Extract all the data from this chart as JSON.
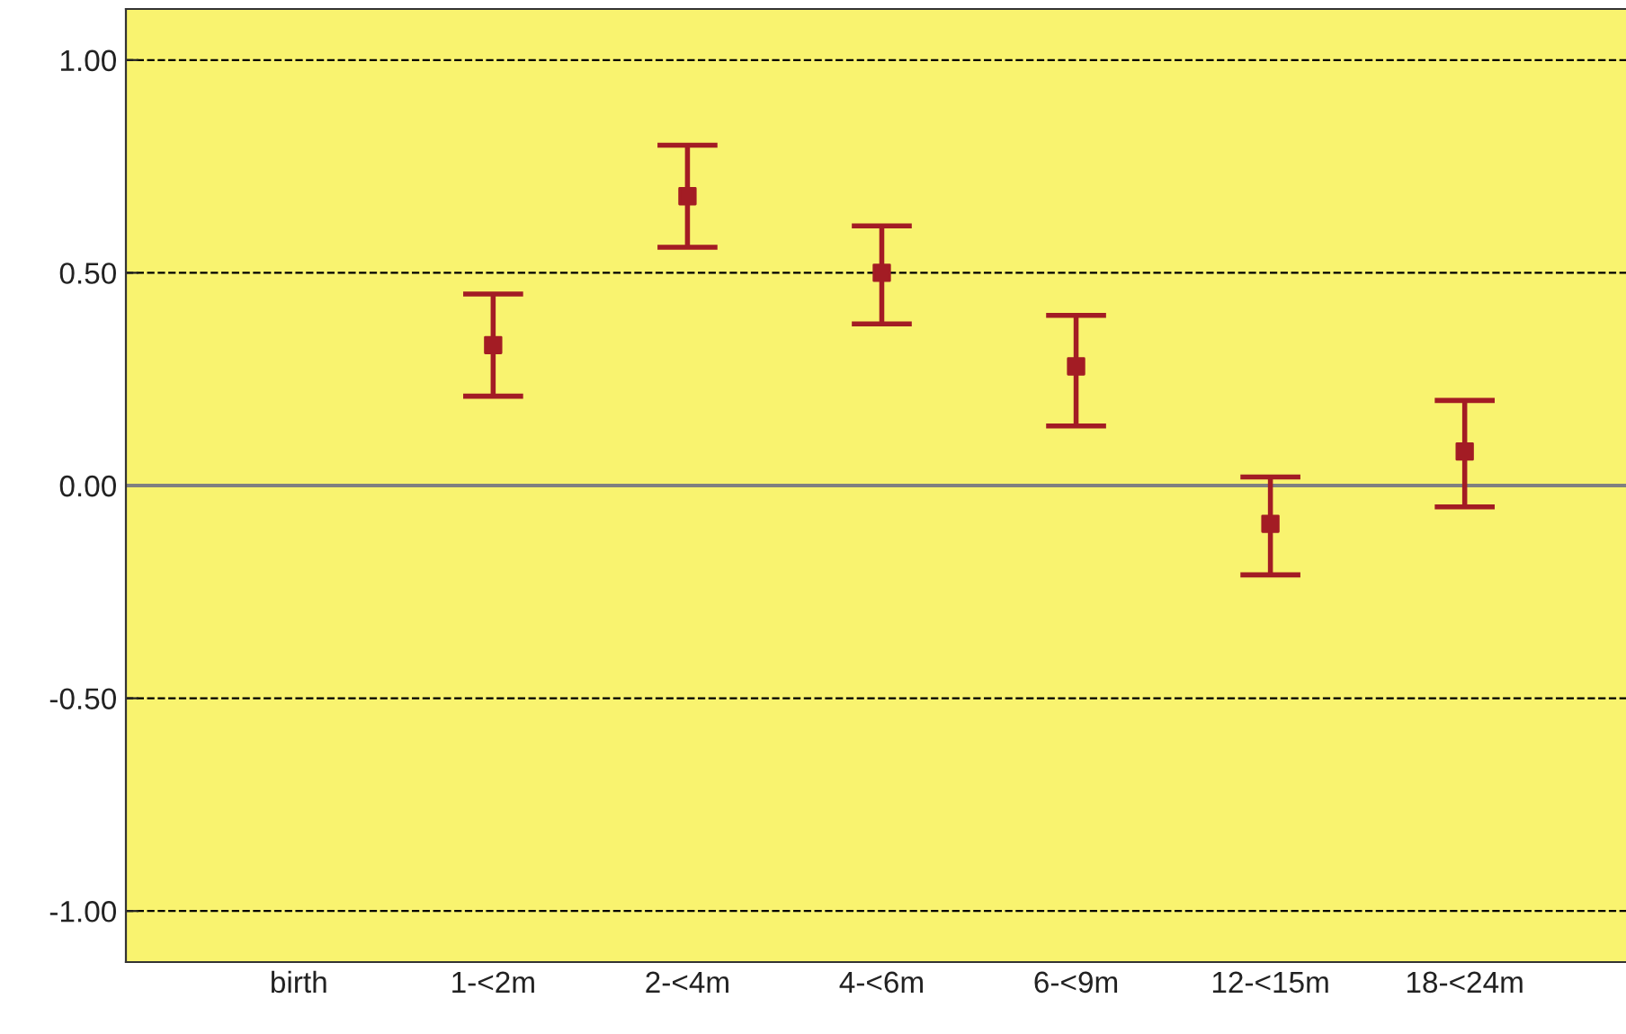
{
  "chart_data": {
    "type": "scatter",
    "categories": [
      "birth",
      "1-<2m",
      "2-<4m",
      "4-<6m",
      "6-<9m",
      "12-<15m",
      "18-<24m"
    ],
    "series": [
      {
        "color": "#a31c24",
        "values": [
          null,
          0.33,
          0.68,
          0.5,
          0.28,
          -0.09,
          0.08
        ],
        "errors": [
          null,
          [
            0.21,
            0.45
          ],
          [
            0.56,
            0.8
          ],
          [
            0.38,
            0.61
          ],
          [
            0.14,
            0.4
          ],
          [
            -0.21,
            0.02
          ],
          [
            -0.05,
            0.2
          ]
        ]
      }
    ],
    "ylim": [
      -1.12,
      1.12
    ],
    "yticks": [
      {
        "value": -1,
        "label": "-1.00"
      },
      {
        "value": -0.5,
        "label": "-0.50"
      },
      {
        "value": 0,
        "label": "0.00"
      },
      {
        "value": 0.5,
        "label": "0.50"
      },
      {
        "value": 1,
        "label": "1.00"
      }
    ],
    "grid": "y",
    "line_style": "dashed",
    "marker": "square",
    "legend": false,
    "ref_lines": [
      {
        "axis": "y",
        "value": 0,
        "color": "#808080",
        "line_style": "solid"
      }
    ]
  }
}
